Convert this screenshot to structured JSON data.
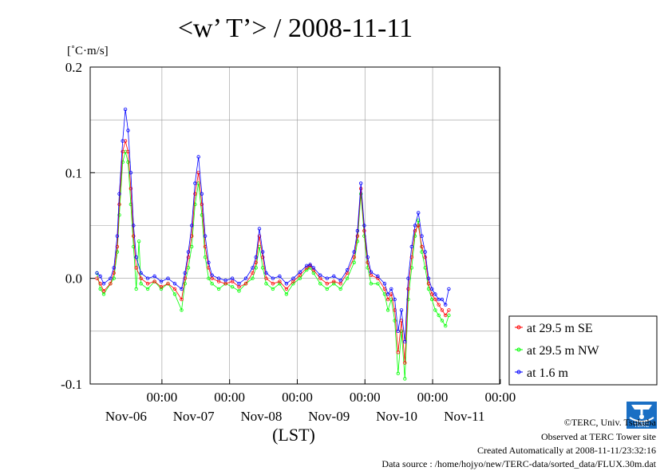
{
  "chart_data": {
    "type": "line",
    "title": "<w’ T’> / 2008-11-11",
    "ylabel": "[˚C·m/s]",
    "xlabel": "(LST)",
    "ylim": [
      -0.1,
      0.2
    ],
    "xlim": [
      0,
      6
    ],
    "y_ticks": [
      {
        "value": 0.2,
        "label": "0.2"
      },
      {
        "value": 0.1,
        "label": "0.1"
      },
      {
        "value": 0.0,
        "label": "0.0"
      },
      {
        "value": -0.1,
        "label": "-0.1"
      }
    ],
    "x_ticks": [
      {
        "value": 1,
        "time": "00:00",
        "date": "Nov-06"
      },
      {
        "value": 2,
        "time": "00:00",
        "date": "Nov-07"
      },
      {
        "value": 3,
        "time": "00:00",
        "date": "Nov-08"
      },
      {
        "value": 4,
        "time": "00:00",
        "date": "Nov-09"
      },
      {
        "value": 5,
        "time": "00:00",
        "date": "Nov-10"
      },
      {
        "value": 6,
        "time": "00:00",
        "date": "Nov-11"
      }
    ],
    "grid": true,
    "legend_position": "right",
    "series": [
      {
        "name": "at 29.5 m SE",
        "color": "#ff0000",
        "x": [
          0,
          0.1,
          0.2,
          0.3,
          0.35,
          0.4,
          0.45,
          0.5,
          0.55,
          0.6,
          0.65,
          0.7,
          0.8,
          0.9,
          1.0,
          1.1,
          1.2,
          1.3,
          1.35,
          1.4,
          1.45,
          1.5,
          1.55,
          1.6,
          1.65,
          1.7,
          1.8,
          1.9,
          2.0,
          2.1,
          2.2,
          2.3,
          2.4,
          2.45,
          2.5,
          2.55,
          2.6,
          2.7,
          2.8,
          2.9,
          3.0,
          3.1,
          3.2,
          3.3,
          3.4,
          3.5,
          3.6,
          3.7,
          3.8,
          3.9,
          4.0,
          4.1,
          4.2,
          4.3,
          4.35,
          4.4,
          4.45,
          4.5,
          4.55,
          4.6,
          4.7,
          4.8,
          4.9,
          5.0,
          5.05,
          5.1,
          5.15,
          5.2,
          5.25,
          5.3,
          5.35,
          5.4,
          5.45,
          5.5,
          5.6,
          5.7,
          5.8,
          5.9
        ],
        "y": [
          0.0,
          -0.005,
          -0.01,
          0.005,
          0.03,
          0.08,
          0.125,
          0.125,
          0.1,
          0.04,
          0.01,
          0.0,
          -0.003,
          -0.005,
          -0.005,
          -0.005,
          -0.01,
          0.01,
          0.03,
          0.07,
          0.1,
          0.08,
          0.04,
          0.01,
          0.005,
          -0.003,
          -0.003,
          -0.005,
          -0.005,
          -0.01,
          0.005,
          0.015,
          0.04,
          0.02,
          0.0,
          -0.005,
          -0.005,
          -0.01,
          0.0,
          0.005,
          0.01,
          0.005,
          -0.003,
          -0.005,
          -0.003,
          -0.005,
          0.003,
          0.02,
          0.04,
          0.085,
          0.03,
          0.005,
          0.0,
          -0.01,
          -0.02,
          -0.025,
          -0.035,
          -0.07,
          -0.03,
          -0.09,
          -0.02,
          0.02,
          0.05,
          0.045,
          0.03,
          0.02,
          0.0,
          -0.01,
          -0.015,
          -0.02,
          -0.025,
          -0.03,
          -0.015,
          -0.02,
          -0.025,
          -0.03,
          -0.035,
          -0.03
        ],
        "x_note": "values continue beyond"
      }
    ]
  },
  "series_points": {
    "se": [
      [
        0,
        0.0
      ],
      [
        0.05,
        -0.005
      ],
      [
        0.1,
        -0.012
      ],
      [
        0.2,
        -0.005
      ],
      [
        0.25,
        0.005
      ],
      [
        0.3,
        0.03
      ],
      [
        0.33,
        0.07
      ],
      [
        0.38,
        0.12
      ],
      [
        0.42,
        0.13
      ],
      [
        0.46,
        0.12
      ],
      [
        0.5,
        0.085
      ],
      [
        0.54,
        0.04
      ],
      [
        0.58,
        0.01
      ],
      [
        0.65,
        0.0
      ],
      [
        0.75,
        -0.005
      ],
      [
        0.85,
        -0.003
      ],
      [
        0.95,
        -0.008
      ],
      [
        1.05,
        -0.005
      ],
      [
        1.15,
        -0.01
      ],
      [
        1.25,
        -0.02
      ],
      [
        1.3,
        0.0
      ],
      [
        1.35,
        0.02
      ],
      [
        1.4,
        0.04
      ],
      [
        1.45,
        0.08
      ],
      [
        1.5,
        0.1
      ],
      [
        1.55,
        0.07
      ],
      [
        1.6,
        0.03
      ],
      [
        1.65,
        0.01
      ],
      [
        1.7,
        0.0
      ],
      [
        1.8,
        -0.003
      ],
      [
        1.9,
        -0.005
      ],
      [
        2.0,
        -0.003
      ],
      [
        2.1,
        -0.008
      ],
      [
        2.2,
        -0.005
      ],
      [
        2.3,
        0.005
      ],
      [
        2.35,
        0.015
      ],
      [
        2.4,
        0.04
      ],
      [
        2.45,
        0.02
      ],
      [
        2.5,
        0.0
      ],
      [
        2.6,
        -0.005
      ],
      [
        2.7,
        -0.003
      ],
      [
        2.8,
        -0.01
      ],
      [
        2.9,
        -0.003
      ],
      [
        3.0,
        0.003
      ],
      [
        3.1,
        0.01
      ],
      [
        3.15,
        0.012
      ],
      [
        3.2,
        0.008
      ],
      [
        3.3,
        0.0
      ],
      [
        3.4,
        -0.005
      ],
      [
        3.5,
        -0.003
      ],
      [
        3.6,
        -0.005
      ],
      [
        3.7,
        0.005
      ],
      [
        3.8,
        0.02
      ],
      [
        3.85,
        0.04
      ],
      [
        3.9,
        0.085
      ],
      [
        3.95,
        0.045
      ],
      [
        4.0,
        0.015
      ],
      [
        4.05,
        0.003
      ],
      [
        4.15,
        0.0
      ],
      [
        4.25,
        -0.01
      ],
      [
        4.3,
        -0.02
      ],
      [
        4.35,
        -0.015
      ],
      [
        4.4,
        -0.03
      ],
      [
        4.45,
        -0.07
      ],
      [
        4.5,
        -0.04
      ],
      [
        4.55,
        -0.08
      ],
      [
        4.6,
        -0.01
      ],
      [
        4.65,
        0.02
      ],
      [
        4.7,
        0.045
      ],
      [
        4.75,
        0.05
      ],
      [
        4.8,
        0.03
      ],
      [
        4.85,
        0.02
      ],
      [
        4.9,
        -0.005
      ],
      [
        4.95,
        -0.015
      ],
      [
        5.0,
        -0.02
      ],
      [
        5.05,
        -0.025
      ],
      [
        5.1,
        -0.03
      ],
      [
        5.15,
        -0.035
      ],
      [
        5.2,
        -0.03
      ]
    ],
    "nw": [
      [
        0,
        0.005
      ],
      [
        0.05,
        -0.01
      ],
      [
        0.1,
        -0.015
      ],
      [
        0.2,
        -0.005
      ],
      [
        0.25,
        0.0
      ],
      [
        0.3,
        0.025
      ],
      [
        0.33,
        0.06
      ],
      [
        0.38,
        0.11
      ],
      [
        0.42,
        0.12
      ],
      [
        0.46,
        0.11
      ],
      [
        0.5,
        0.07
      ],
      [
        0.54,
        0.03
      ],
      [
        0.58,
        -0.01
      ],
      [
        0.62,
        0.035
      ],
      [
        0.65,
        -0.005
      ],
      [
        0.75,
        -0.01
      ],
      [
        0.85,
        -0.003
      ],
      [
        0.95,
        -0.01
      ],
      [
        1.05,
        -0.005
      ],
      [
        1.15,
        -0.015
      ],
      [
        1.25,
        -0.03
      ],
      [
        1.3,
        -0.005
      ],
      [
        1.35,
        0.01
      ],
      [
        1.4,
        0.03
      ],
      [
        1.45,
        0.07
      ],
      [
        1.5,
        0.09
      ],
      [
        1.55,
        0.06
      ],
      [
        1.6,
        0.02
      ],
      [
        1.65,
        0.0
      ],
      [
        1.7,
        -0.005
      ],
      [
        1.8,
        -0.01
      ],
      [
        1.9,
        -0.005
      ],
      [
        2.0,
        -0.008
      ],
      [
        2.1,
        -0.012
      ],
      [
        2.2,
        -0.005
      ],
      [
        2.3,
        0.0
      ],
      [
        2.35,
        0.01
      ],
      [
        2.4,
        0.03
      ],
      [
        2.45,
        0.01
      ],
      [
        2.5,
        -0.005
      ],
      [
        2.6,
        -0.01
      ],
      [
        2.7,
        -0.005
      ],
      [
        2.8,
        -0.015
      ],
      [
        2.9,
        -0.005
      ],
      [
        3.0,
        0.0
      ],
      [
        3.1,
        0.008
      ],
      [
        3.15,
        0.01
      ],
      [
        3.2,
        0.005
      ],
      [
        3.3,
        -0.005
      ],
      [
        3.4,
        -0.01
      ],
      [
        3.5,
        -0.005
      ],
      [
        3.6,
        -0.01
      ],
      [
        3.7,
        0.0
      ],
      [
        3.8,
        0.015
      ],
      [
        3.85,
        0.035
      ],
      [
        3.9,
        0.08
      ],
      [
        3.95,
        0.04
      ],
      [
        4.0,
        0.01
      ],
      [
        4.05,
        -0.005
      ],
      [
        4.15,
        -0.005
      ],
      [
        4.25,
        -0.015
      ],
      [
        4.3,
        -0.03
      ],
      [
        4.35,
        -0.02
      ],
      [
        4.4,
        -0.04
      ],
      [
        4.45,
        -0.09
      ],
      [
        4.5,
        -0.05
      ],
      [
        4.55,
        -0.095
      ],
      [
        4.6,
        -0.02
      ],
      [
        4.65,
        0.01
      ],
      [
        4.7,
        0.04
      ],
      [
        4.75,
        0.055
      ],
      [
        4.8,
        0.025
      ],
      [
        4.85,
        0.01
      ],
      [
        4.9,
        -0.01
      ],
      [
        4.95,
        -0.02
      ],
      [
        5.0,
        -0.03
      ],
      [
        5.05,
        -0.035
      ],
      [
        5.1,
        -0.04
      ],
      [
        5.15,
        -0.045
      ],
      [
        5.2,
        -0.035
      ]
    ],
    "m16": [
      [
        0,
        0.005
      ],
      [
        0.05,
        0.002
      ],
      [
        0.1,
        -0.005
      ],
      [
        0.2,
        0.0
      ],
      [
        0.25,
        0.01
      ],
      [
        0.3,
        0.04
      ],
      [
        0.33,
        0.08
      ],
      [
        0.38,
        0.13
      ],
      [
        0.42,
        0.16
      ],
      [
        0.46,
        0.14
      ],
      [
        0.5,
        0.1
      ],
      [
        0.54,
        0.05
      ],
      [
        0.58,
        0.02
      ],
      [
        0.65,
        0.005
      ],
      [
        0.75,
        0.0
      ],
      [
        0.85,
        0.002
      ],
      [
        0.95,
        -0.003
      ],
      [
        1.05,
        0.0
      ],
      [
        1.15,
        -0.005
      ],
      [
        1.25,
        -0.01
      ],
      [
        1.3,
        0.005
      ],
      [
        1.35,
        0.025
      ],
      [
        1.4,
        0.05
      ],
      [
        1.45,
        0.09
      ],
      [
        1.5,
        0.115
      ],
      [
        1.55,
        0.08
      ],
      [
        1.6,
        0.04
      ],
      [
        1.65,
        0.015
      ],
      [
        1.7,
        0.003
      ],
      [
        1.8,
        0.0
      ],
      [
        1.9,
        -0.002
      ],
      [
        2.0,
        0.0
      ],
      [
        2.1,
        -0.005
      ],
      [
        2.2,
        0.0
      ],
      [
        2.3,
        0.01
      ],
      [
        2.35,
        0.02
      ],
      [
        2.4,
        0.047
      ],
      [
        2.45,
        0.025
      ],
      [
        2.5,
        0.005
      ],
      [
        2.6,
        0.0
      ],
      [
        2.7,
        0.002
      ],
      [
        2.8,
        -0.005
      ],
      [
        2.9,
        0.0
      ],
      [
        3.0,
        0.006
      ],
      [
        3.1,
        0.012
      ],
      [
        3.15,
        0.013
      ],
      [
        3.2,
        0.01
      ],
      [
        3.3,
        0.003
      ],
      [
        3.4,
        0.0
      ],
      [
        3.5,
        0.002
      ],
      [
        3.6,
        -0.002
      ],
      [
        3.7,
        0.008
      ],
      [
        3.8,
        0.025
      ],
      [
        3.85,
        0.045
      ],
      [
        3.9,
        0.09
      ],
      [
        3.95,
        0.05
      ],
      [
        4.0,
        0.02
      ],
      [
        4.05,
        0.006
      ],
      [
        4.15,
        0.002
      ],
      [
        4.25,
        -0.005
      ],
      [
        4.3,
        -0.015
      ],
      [
        4.35,
        -0.01
      ],
      [
        4.4,
        -0.02
      ],
      [
        4.45,
        -0.05
      ],
      [
        4.5,
        -0.03
      ],
      [
        4.55,
        -0.06
      ],
      [
        4.6,
        0.0
      ],
      [
        4.65,
        0.03
      ],
      [
        4.7,
        0.05
      ],
      [
        4.75,
        0.062
      ],
      [
        4.8,
        0.04
      ],
      [
        4.85,
        0.025
      ],
      [
        4.9,
        0.0
      ],
      [
        4.95,
        -0.01
      ],
      [
        5.0,
        -0.015
      ],
      [
        5.05,
        -0.02
      ],
      [
        5.1,
        -0.02
      ],
      [
        5.15,
        -0.025
      ],
      [
        5.2,
        -0.01
      ]
    ]
  },
  "legend": [
    {
      "label": "at 29.5 m SE",
      "color": "#ff0000"
    },
    {
      "label": "at 29.5 m NW",
      "color": "#00ff00"
    },
    {
      "label": "at 1.6 m",
      "color": "#0000ff"
    }
  ],
  "credits": {
    "copyright": "©TERC, Univ. Tsukuba",
    "observed": "Observed at TERC Tower site",
    "created": "Created Automatically at 2008-11-11/23:32:16",
    "source": "Data source : /home/hojyo/new/TERC-data/sorted_data/FLUX.30m.dat"
  },
  "logo": {
    "text": "TERC",
    "color": "#1a6fc4"
  }
}
